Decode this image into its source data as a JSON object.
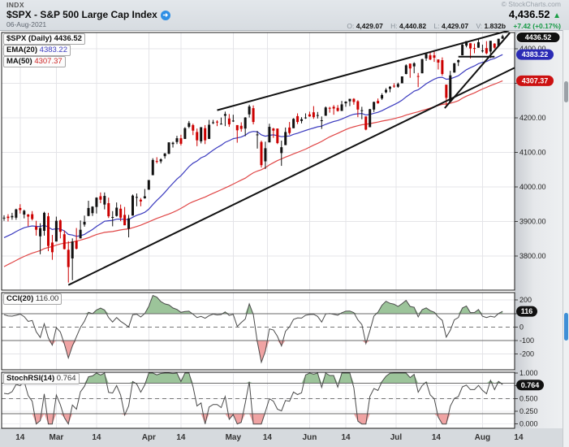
{
  "header": {
    "exchange": "INDX",
    "title": "$SPX - S&P 500 Large Cap Index",
    "info_icon": "➜",
    "date": "06-Aug-2021",
    "copyright": "© StockCharts.com",
    "last_price": "4,436.52",
    "direction_icon": "▲",
    "ohlcv": {
      "o_label": "O:",
      "o": "4,429.07",
      "h_label": "H:",
      "h": "4,440.82",
      "l_label": "L:",
      "l": "4,429.07",
      "v_label": "V:",
      "v": "1.832b",
      "change": "+7.42 (+0.17%)"
    }
  },
  "legend": {
    "main": "$SPX (Daily) 4436.52",
    "ema_label": "EMA(20)",
    "ema_value": "4383.22",
    "ma_label": "MA(50)",
    "ma_value": "4307.37"
  },
  "indicators": {
    "cci": {
      "name": "CCI(20)",
      "value_text": "116.00"
    },
    "stochrsi": {
      "name": "StochRSI(14)",
      "value_text": "0.764"
    }
  },
  "pills": {
    "price": "4436.52",
    "ema": "4383.22",
    "ma": "4307.37",
    "cci": "116",
    "stochrsi": "0.764"
  },
  "colors": {
    "up": "#111111",
    "down": "#cc0000",
    "ema": "#3b3bbf",
    "ma": "#e04646",
    "fill_green": "#9cc49a",
    "fill_red": "#f0a3a3",
    "trendline": "#111111",
    "price_pill": "#111111",
    "ema_pill": "#2b2bb5",
    "ma_pill": "#cc1111",
    "ind_pill": "#111111",
    "change_green": "#169a44"
  },
  "chart_data": [
    {
      "type": "candlestick",
      "title": "$SPX (Daily)",
      "last": 4436.52,
      "ema_last": 4383.22,
      "ma_last": 4307.37,
      "y_ticks": [
        4400,
        4300,
        4200,
        4100,
        4000,
        3900,
        3800
      ],
      "ylim": [
        3700,
        4447
      ],
      "x_labels": [
        {
          "t": "14",
          "i": 4
        },
        {
          "t": "Mar",
          "i": 13
        },
        {
          "t": "14",
          "i": 23
        },
        {
          "t": "Apr",
          "i": 36
        },
        {
          "t": "14",
          "i": 44
        },
        {
          "t": "May",
          "i": 57
        },
        {
          "t": "14",
          "i": 65.5
        },
        {
          "t": "Jun",
          "i": 76
        },
        {
          "t": "14",
          "i": 85
        },
        {
          "t": "Jul",
          "i": 97.5
        },
        {
          "t": "14",
          "i": 107.5
        },
        {
          "t": "Aug",
          "i": 119
        },
        {
          "t": "14",
          "i": 128
        }
      ],
      "overlays": [
        {
          "name": "EMA",
          "period": 20
        },
        {
          "name": "SMA",
          "period": 50
        }
      ],
      "trendlines": [
        [
          16,
          3716,
          127,
          4345
        ],
        [
          53,
          4222,
          125.6,
          4453
        ],
        [
          109.6,
          4228,
          125.8,
          4446
        ],
        [
          113,
          4377,
          122,
          4377
        ]
      ],
      "prior_closes": [
        3577,
        3592,
        3629,
        3638,
        3622,
        3662,
        3669,
        3666,
        3699,
        3691,
        3647,
        3668,
        3663,
        3709,
        3702,
        3694,
        3722,
        3735,
        3690,
        3727,
        3733,
        3756,
        3703,
        3748,
        3803,
        3824,
        3852,
        3851,
        3824,
        3796,
        3798,
        3851,
        3810,
        3795,
        3768,
        3714,
        3787,
        3826,
        3830,
        3871,
        3886,
        3911,
        3895,
        3871,
        3812,
        3830,
        3841,
        3886,
        3916,
        3935
      ],
      "candles": [
        [
          3910,
          3918,
          3902,
          3911
        ],
        [
          3914,
          3921,
          3900,
          3910
        ],
        [
          3912,
          3925,
          3905,
          3916
        ],
        [
          3911,
          3937,
          3905,
          3935
        ],
        [
          3939,
          3950,
          3923,
          3933
        ],
        [
          3920,
          3934,
          3909,
          3931
        ],
        [
          3920,
          3922,
          3886,
          3914
        ],
        [
          3921,
          3930,
          3903,
          3907
        ],
        [
          3885,
          3902,
          3859,
          3876
        ],
        [
          3857,
          3895,
          3805,
          3881
        ],
        [
          3873,
          3928,
          3859,
          3925
        ],
        [
          3915,
          3925,
          3814,
          3829
        ],
        [
          3839,
          3861,
          3789,
          3811
        ],
        [
          3842,
          3914,
          3842,
          3902
        ],
        [
          3903,
          3906,
          3851,
          3870
        ],
        [
          3863,
          3874,
          3819,
          3820
        ],
        [
          3818,
          3843,
          3723,
          3768
        ],
        [
          3793,
          3851,
          3730,
          3842
        ],
        [
          3844,
          3881,
          3819,
          3821
        ],
        [
          3851,
          3903,
          3851,
          3876
        ],
        [
          3891,
          3917,
          3885,
          3899
        ],
        [
          3916,
          3960,
          3915,
          3939
        ],
        [
          3924,
          3944,
          3916,
          3943
        ],
        [
          3942,
          3970,
          3923,
          3969
        ],
        [
          3973,
          3984,
          3953,
          3963
        ],
        [
          3949,
          3984,
          3935,
          3974
        ],
        [
          3953,
          3969,
          3910,
          3915
        ],
        [
          3913,
          3930,
          3886,
          3913
        ],
        [
          3916,
          3955,
          3914,
          3940
        ],
        [
          3937,
          3949,
          3901,
          3911
        ],
        [
          3919,
          3942,
          3889,
          3889
        ],
        [
          3879,
          3919,
          3854,
          3909
        ],
        [
          3917,
          3978,
          3917,
          3975
        ],
        [
          3969,
          3981,
          3944,
          3971
        ],
        [
          3963,
          3968,
          3944,
          3958
        ],
        [
          3967,
          3994,
          3966,
          3973
        ],
        [
          3992,
          4020,
          3992,
          4020
        ],
        [
          4034,
          4083,
          4034,
          4078
        ],
        [
          4075,
          4086,
          4068,
          4074
        ],
        [
          4074,
          4083,
          4068,
          4080
        ],
        [
          4089,
          4098,
          4082,
          4097
        ],
        [
          4096,
          4129,
          4095,
          4129
        ],
        [
          4124,
          4131,
          4114,
          4128
        ],
        [
          4130,
          4148,
          4124,
          4141
        ],
        [
          4141,
          4151,
          4120,
          4125
        ],
        [
          4139,
          4173,
          4139,
          4170
        ],
        [
          4174,
          4191,
          4170,
          4185
        ],
        [
          4179,
          4183,
          4150,
          4163
        ],
        [
          4159,
          4169,
          4118,
          4135
        ],
        [
          4132,
          4173,
          4126,
          4173
        ],
        [
          4170,
          4179,
          4124,
          4135
        ],
        [
          4139,
          4194,
          4139,
          4180
        ],
        [
          4185,
          4194,
          4182,
          4187
        ],
        [
          4189,
          4193,
          4176,
          4187
        ],
        [
          4183,
          4201,
          4181,
          4183
        ],
        [
          4206,
          4218,
          4176,
          4211
        ],
        [
          4198,
          4211,
          4174,
          4181
        ],
        [
          4191,
          4209,
          4188,
          4192
        ],
        [
          4179,
          4179,
          4128,
          4164
        ],
        [
          4177,
          4187,
          4160,
          4168
        ],
        [
          4169,
          4202,
          4147,
          4201
        ],
        [
          4210,
          4238,
          4201,
          4233
        ],
        [
          4228,
          4236,
          4181,
          4188
        ],
        [
          4150,
          4162,
          4111,
          4152
        ],
        [
          4130,
          4134,
          4056,
          4063
        ],
        [
          4074,
          4131,
          4052,
          4112
        ],
        [
          4129,
          4183,
          4129,
          4174
        ],
        [
          4169,
          4171,
          4142,
          4163
        ],
        [
          4169,
          4169,
          4124,
          4127
        ],
        [
          4098,
          4134,
          4061,
          4115
        ],
        [
          4121,
          4172,
          4121,
          4159
        ],
        [
          4172,
          4188,
          4151,
          4156
        ],
        [
          4170,
          4199,
          4170,
          4197
        ],
        [
          4205,
          4213,
          4182,
          4188
        ],
        [
          4191,
          4202,
          4184,
          4196
        ],
        [
          4201,
          4213,
          4197,
          4201
        ],
        [
          4210,
          4218,
          4203,
          4204
        ],
        [
          4216,
          4234,
          4197,
          4202
        ],
        [
          4206,
          4217,
          4198,
          4208
        ],
        [
          4191,
          4204,
          4168,
          4193
        ],
        [
          4206,
          4233,
          4206,
          4230
        ],
        [
          4229,
          4232,
          4215,
          4227
        ],
        [
          4232,
          4237,
          4209,
          4227
        ],
        [
          4229,
          4237,
          4218,
          4220
        ],
        [
          4220,
          4249,
          4220,
          4239
        ],
        [
          4242,
          4248,
          4232,
          4247
        ],
        [
          4248,
          4255,
          4234,
          4255
        ],
        [
          4255,
          4257,
          4238,
          4246
        ],
        [
          4248,
          4251,
          4202,
          4224
        ],
        [
          4220,
          4232,
          4196,
          4222
        ],
        [
          4204,
          4204,
          4164,
          4166
        ],
        [
          4173,
          4226,
          4173,
          4225
        ],
        [
          4224,
          4247,
          4217,
          4246
        ],
        [
          4249,
          4256,
          4241,
          4242
        ],
        [
          4256,
          4271,
          4252,
          4266
        ],
        [
          4274,
          4286,
          4271,
          4281
        ],
        [
          4284,
          4292,
          4274,
          4290
        ],
        [
          4293,
          4300,
          4287,
          4292
        ],
        [
          4290,
          4302,
          4287,
          4298
        ],
        [
          4300,
          4320,
          4300,
          4320
        ],
        [
          4327,
          4355,
          4326,
          4352
        ],
        [
          4357,
          4357,
          4316,
          4343
        ],
        [
          4349,
          4361,
          4329,
          4358
        ],
        [
          4321,
          4330,
          4289,
          4320
        ],
        [
          4329,
          4371,
          4329,
          4370
        ],
        [
          4372,
          4386,
          4365,
          4385
        ],
        [
          4381,
          4392,
          4367,
          4369
        ],
        [
          4381,
          4394,
          4362,
          4374
        ],
        [
          4369,
          4369,
          4340,
          4360
        ],
        [
          4367,
          4375,
          4322,
          4327
        ],
        [
          4296,
          4296,
          4233,
          4258
        ],
        [
          4246,
          4336,
          4246,
          4323
        ],
        [
          4331,
          4359,
          4331,
          4358
        ],
        [
          4361,
          4369,
          4350,
          4367
        ],
        [
          4381,
          4415,
          4381,
          4412
        ],
        [
          4409,
          4422,
          4404,
          4422
        ],
        [
          4416,
          4416,
          4372,
          4401
        ],
        [
          4402,
          4415,
          4387,
          4401
        ],
        [
          4403,
          4430,
          4403,
          4419
        ],
        [
          4395,
          4412,
          4389,
          4395
        ],
        [
          4402,
          4422,
          4384,
          4387
        ],
        [
          4392,
          4423,
          4373,
          4423
        ],
        [
          4415,
          4416,
          4400,
          4403
        ],
        [
          4408,
          4429,
          4408,
          4429
        ],
        [
          4429,
          4440.8,
          4429,
          4436.5
        ]
      ]
    },
    {
      "type": "line",
      "name": "CCI(20)",
      "last": 116.0,
      "y_ticks": [
        200,
        100,
        0,
        -100,
        -200
      ],
      "ylim": [
        -290,
        256
      ],
      "thresholds": {
        "upper": 100,
        "lower": -100,
        "mid": 0
      }
    },
    {
      "type": "line",
      "name": "StochRSI(14)",
      "last": 0.764,
      "y_ticks": [
        1.0,
        0.75,
        0.5,
        0.25,
        0.0
      ],
      "ylim": [
        -0.08,
        1.04
      ],
      "thresholds": {
        "upper": 0.8,
        "lower": 0.2,
        "mid": 0.5
      }
    }
  ]
}
